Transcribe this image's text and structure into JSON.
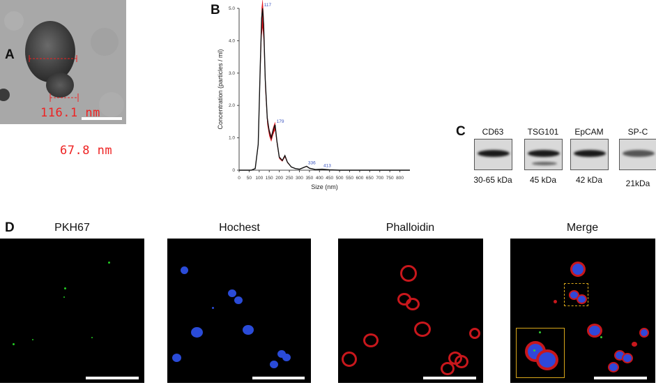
{
  "panels": {
    "a": {
      "letter": "A",
      "measure1": "116.1 nm",
      "measure2": "67.8 nm"
    },
    "b": {
      "letter": "B"
    },
    "c": {
      "letter": "C"
    },
    "d": {
      "letter": "D"
    }
  },
  "chart_data": {
    "type": "line",
    "xlabel": "Size (nm)",
    "ylabel": "Concentration (particles / ml)",
    "xlim": [
      0,
      850
    ],
    "ylim": [
      0,
      5.0
    ],
    "xticks": [
      "0",
      "50",
      "100",
      "150",
      "200",
      "250",
      "300",
      "350",
      "400",
      "450",
      "500",
      "550",
      "600",
      "650",
      "700",
      "750",
      "800"
    ],
    "yticks": [
      "0",
      "1.0",
      "2.0",
      "3.0",
      "4.0",
      "5.0"
    ],
    "series": [
      {
        "values": [
          [
            0,
            0
          ],
          [
            60,
            0
          ],
          [
            80,
            0.05
          ],
          [
            95,
            0.8
          ],
          [
            105,
            3.2
          ],
          [
            112,
            4.7
          ],
          [
            117,
            5.0
          ],
          [
            122,
            4.5
          ],
          [
            130,
            2.8
          ],
          [
            140,
            1.6
          ],
          [
            150,
            1.2
          ],
          [
            160,
            1.0
          ],
          [
            170,
            1.25
          ],
          [
            179,
            1.4
          ],
          [
            188,
            0.9
          ],
          [
            200,
            0.4
          ],
          [
            215,
            0.3
          ],
          [
            228,
            0.45
          ],
          [
            240,
            0.25
          ],
          [
            260,
            0.1
          ],
          [
            280,
            0.05
          ],
          [
            300,
            0.03
          ],
          [
            320,
            0.08
          ],
          [
            336,
            0.12
          ],
          [
            350,
            0.06
          ],
          [
            380,
            0.02
          ],
          [
            413,
            0.03
          ],
          [
            450,
            0.01
          ],
          [
            500,
            0.0
          ],
          [
            850,
            0.0
          ]
        ]
      }
    ],
    "peak_labels": [
      "117",
      "179",
      "336",
      "413"
    ]
  },
  "blots": [
    {
      "name": "CD63",
      "size": "30-65 kDa"
    },
    {
      "name": "TSG101",
      "size": "45 kDa"
    },
    {
      "name": "EpCAM",
      "size": "42 kDa"
    },
    {
      "name": "SP-C",
      "size": "21kDa"
    }
  ],
  "fluor": [
    {
      "title": "PKH67"
    },
    {
      "title": "Hochest"
    },
    {
      "title": "Phalloidin"
    },
    {
      "title": "Merge"
    }
  ],
  "colors": {
    "curve_fill": "#e0161e",
    "curve_line": "#111111",
    "peak_label": "#3b55c0",
    "scalebar": "#ffffff",
    "inset_border": "#d9a81a"
  }
}
